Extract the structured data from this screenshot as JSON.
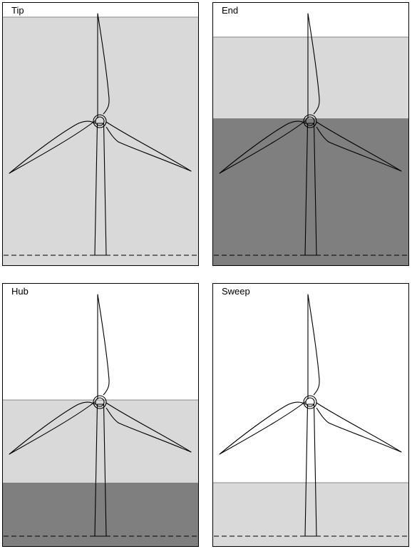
{
  "colors": {
    "light_band": "#d9d9d9",
    "dark_band": "#7f7f7f",
    "outline": "#000000",
    "background": "#ffffff"
  },
  "panels": [
    {
      "label": "Tip",
      "bands": "light-from-tip-level"
    },
    {
      "label": "End",
      "bands": "light-from-tip-dark-from-hub"
    },
    {
      "label": "Hub",
      "bands": "light-from-hub-dark-from-blade-end"
    },
    {
      "label": "Sweep",
      "bands": "light-from-blade-end"
    }
  ]
}
